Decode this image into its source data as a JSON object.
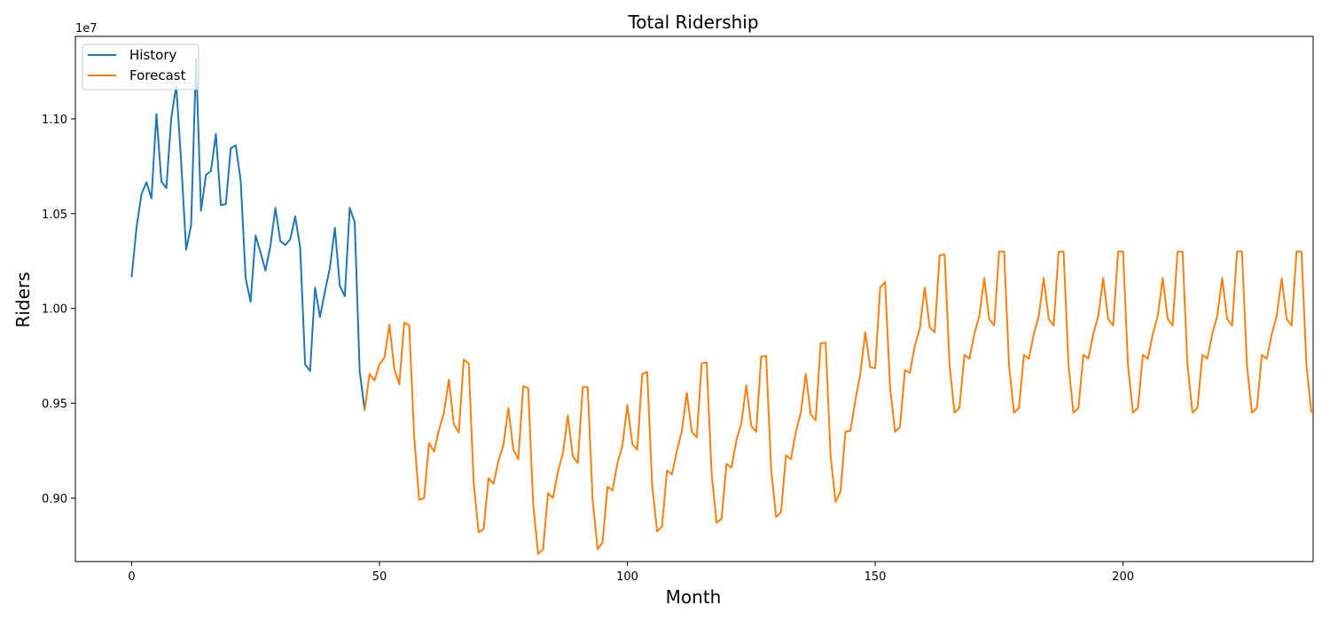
{
  "chart_data": {
    "type": "line",
    "title": "Total Ridership",
    "xlabel": "Month",
    "ylabel": "Riders",
    "y_offset_label": "1e7",
    "xlim": [
      -11.35,
      238.35
    ],
    "ylim": [
      0.8665,
      1.1435
    ],
    "x_ticks": [
      0,
      50,
      100,
      150,
      200
    ],
    "x_tick_labels": [
      "0",
      "50",
      "100",
      "150",
      "200"
    ],
    "y_ticks": [
      0.9,
      0.95,
      1.0,
      1.05,
      1.1
    ],
    "y_tick_labels": [
      "0.90",
      "0.95",
      "1.00",
      "1.05",
      "1.10"
    ],
    "grid": false,
    "legend": {
      "position": "top-left",
      "entries": [
        "History",
        "Forecast"
      ]
    },
    "series": [
      {
        "name": "History",
        "color": "#1f77b4",
        "x_start": 0,
        "values": [
          1.0165,
          1.043,
          1.0605,
          1.0665,
          1.058,
          1.1025,
          1.067,
          1.0635,
          1.1005,
          1.1175,
          1.077,
          1.031,
          1.044,
          1.1315,
          1.0515,
          1.0705,
          1.0725,
          1.092,
          1.0545,
          1.055,
          1.0845,
          1.086,
          1.0675,
          1.016,
          1.0035,
          1.0385,
          1.0295,
          1.02,
          1.033,
          1.053,
          1.0355,
          1.0335,
          1.0365,
          1.0485,
          1.032,
          0.9705,
          0.967,
          1.011,
          0.9955,
          1.009,
          1.0215,
          1.0425,
          1.012,
          1.0065,
          1.053,
          1.0455,
          0.967,
          0.9465
        ]
      },
      {
        "name": "Forecast",
        "color": "#ff7f0e",
        "x_start": 47,
        "values": [
          0.946,
          0.9655,
          0.962,
          0.9705,
          0.974,
          0.9915,
          0.968,
          0.96,
          0.9925,
          0.991,
          0.9325,
          0.899,
          0.9,
          0.929,
          0.9245,
          0.936,
          0.945,
          0.9625,
          0.939,
          0.9345,
          0.973,
          0.971,
          0.908,
          0.882,
          0.8835,
          0.9105,
          0.9075,
          0.9195,
          0.928,
          0.9475,
          0.9255,
          0.9205,
          0.959,
          0.958,
          0.897,
          0.8705,
          0.873,
          0.9025,
          0.9,
          0.914,
          0.9235,
          0.9435,
          0.922,
          0.9185,
          0.9585,
          0.9585,
          0.899,
          0.873,
          0.8765,
          0.906,
          0.904,
          0.9185,
          0.9275,
          0.949,
          0.9285,
          0.9255,
          0.9655,
          0.9665,
          0.907,
          0.8825,
          0.885,
          0.9145,
          0.9125,
          0.925,
          0.9355,
          0.9555,
          0.935,
          0.932,
          0.971,
          0.9715,
          0.913,
          0.887,
          0.889,
          0.918,
          0.916,
          0.9305,
          0.9395,
          0.9595,
          0.938,
          0.935,
          0.9745,
          0.975,
          0.9155,
          0.89,
          0.8925,
          0.9225,
          0.9205,
          0.935,
          0.945,
          0.9655,
          0.944,
          0.941,
          0.9815,
          0.982,
          0.9225,
          0.898,
          0.9035,
          0.935,
          0.9355,
          0.9515,
          0.9655,
          0.9875,
          0.969,
          0.9685,
          1.011,
          1.014,
          0.9585,
          0.935,
          0.9375,
          0.9675,
          0.966,
          0.9805,
          0.9895,
          1.011,
          0.99,
          0.9875,
          1.028,
          1.0285,
          0.9705,
          0.945,
          0.9475,
          0.9755,
          0.9735,
          0.9865,
          0.996,
          1.016,
          0.9945,
          0.991,
          1.03,
          1.03,
          0.97,
          0.945,
          0.9475,
          0.9755,
          0.9735,
          0.9865,
          0.996,
          1.016,
          0.9945,
          0.991,
          1.03,
          1.03,
          0.97,
          0.945,
          0.9475,
          0.9755,
          0.9735,
          0.9865,
          0.996,
          1.016,
          0.9945,
          0.991,
          1.03,
          1.03,
          0.97,
          0.945,
          0.9475,
          0.9755,
          0.9735,
          0.9865,
          0.996,
          1.016,
          0.9945,
          0.991,
          1.03,
          1.03,
          0.97,
          0.945,
          0.9475,
          0.9755,
          0.9735,
          0.9865,
          0.996,
          1.016,
          0.9945,
          0.991,
          1.03,
          1.03,
          0.97,
          0.945,
          0.9475,
          0.9755,
          0.9735,
          0.9865,
          0.996,
          1.016,
          0.9945,
          0.991,
          1.03,
          1.03,
          0.97,
          0.945
        ]
      }
    ]
  }
}
